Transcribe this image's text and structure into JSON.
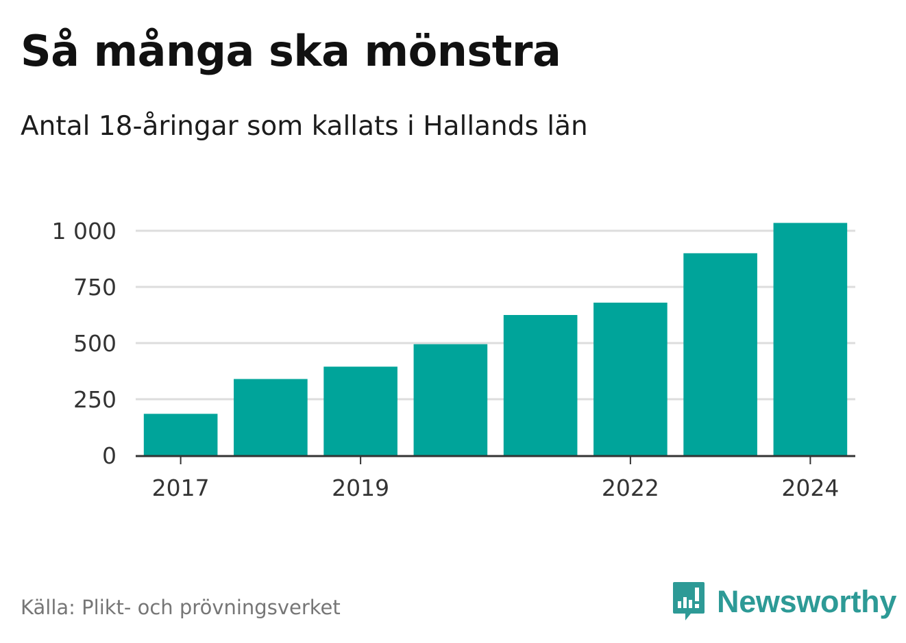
{
  "title": "Så många ska mönstra",
  "subtitle": "Antal 18-åringar som kallats i Hallands län",
  "source": "Källa: Plikt- och prövningsverket",
  "brand": {
    "name": "Newsworthy",
    "icon": "newsworthy-logo-icon",
    "color": "#2d9a96"
  },
  "colors": {
    "bar": "#00a49a",
    "grid": "#dddddd",
    "axis": "#333333"
  },
  "chart_data": {
    "type": "bar",
    "title": "Så många ska mönstra",
    "subtitle": "Antal 18-åringar som kallats i Hallands län",
    "categories": [
      "2017",
      "2018",
      "2019",
      "2020",
      "2021",
      "2022",
      "2023",
      "2024"
    ],
    "values": [
      185,
      340,
      395,
      495,
      625,
      680,
      900,
      1035
    ],
    "x_tick_labels": [
      "2017",
      "2019",
      "2022",
      "2024"
    ],
    "y_ticks": [
      0,
      250,
      500,
      750,
      1000
    ],
    "y_tick_labels": [
      "0",
      "250",
      "500",
      "750",
      "1 000"
    ],
    "ylim": [
      0,
      1000
    ],
    "xlabel": "",
    "ylabel": "",
    "grid": true,
    "legend": "none"
  }
}
